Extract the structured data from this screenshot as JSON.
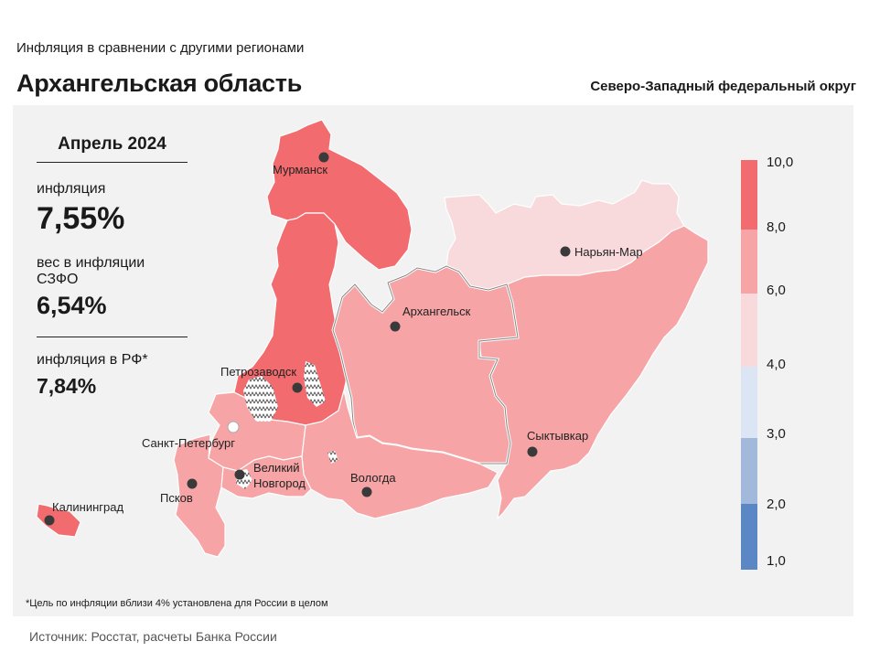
{
  "header": {
    "subtitle": "Инфляция  в сравнении  с другими  регионами",
    "title": "Архангельская область",
    "district": "Северо-Западный федеральный округ"
  },
  "stats": {
    "period": "Апрель 2024",
    "inflation_label": "инфляция",
    "inflation_value": "7,55%",
    "weight_label": "вес в инфляции  СЗФО",
    "weight_value": "6,54%",
    "rf_label": "инфляция  в РФ*",
    "rf_value": "7,84%"
  },
  "legend": {
    "bins": [
      {
        "from": 8.0,
        "to": 10.0,
        "color": "#f26b6e"
      },
      {
        "from": 6.0,
        "to": 8.0,
        "color": "#f6a4a6"
      },
      {
        "from": 4.0,
        "to": 6.0,
        "color": "#f8dadc"
      },
      {
        "from": 3.0,
        "to": 4.0,
        "color": "#dbe5f3"
      },
      {
        "from": 2.0,
        "to": 3.0,
        "color": "#a2b9dc"
      },
      {
        "from": 1.0,
        "to": 2.0,
        "color": "#5b87c5"
      }
    ],
    "labels": [
      "10,0",
      "8,0",
      "6,0",
      "4,0",
      "3,0",
      "2,0",
      "1,0"
    ]
  },
  "map": {
    "highlighted_region": "Архангельская область",
    "cities": [
      {
        "name": "Мурманск",
        "band": "8-10"
      },
      {
        "name": "Нарьян-Мар",
        "band": "4-6"
      },
      {
        "name": "Архангельск",
        "band": "6-8"
      },
      {
        "name": "Петрозаводск",
        "band": "8-10"
      },
      {
        "name": "Санкт-Петербург",
        "band": "6-8"
      },
      {
        "name": "Сыктывкар",
        "band": "6-8"
      },
      {
        "name": "Великий Новгород",
        "band": "6-8"
      },
      {
        "name": "Вологда",
        "band": "6-8"
      },
      {
        "name": "Псков",
        "band": "6-8"
      },
      {
        "name": "Калининград",
        "band": "8-10"
      }
    ]
  },
  "footnote": "*Цель по инфляции вблизи 4% установлена для России в целом",
  "source": "Источник:  Росстат,  расчеты Банка  России"
}
